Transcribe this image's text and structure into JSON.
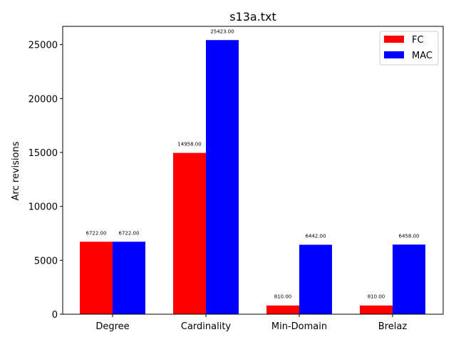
{
  "chart_data": {
    "type": "bar",
    "title": "s13a.txt",
    "xlabel": "",
    "ylabel": "Arc revisions",
    "categories": [
      "Degree",
      "Cardinality",
      "Min-Domain",
      "Brelaz"
    ],
    "series": [
      {
        "name": "FC",
        "color": "#ff0000",
        "values": [
          6722,
          14958,
          810,
          810
        ],
        "labels": [
          "6722.00",
          "14958.00",
          "810.00",
          "810.00"
        ]
      },
      {
        "name": "MAC",
        "color": "#0000ff",
        "values": [
          6722,
          25423,
          6442,
          6458
        ],
        "labels": [
          "6722.00",
          "25423.00",
          "6442.00",
          "6458.00"
        ]
      }
    ],
    "ylim": [
      0,
      26695
    ],
    "yticks": [
      0,
      5000,
      10000,
      15000,
      20000,
      25000
    ],
    "ytick_labels": [
      "0",
      "5000",
      "10000",
      "15000",
      "20000",
      "25000"
    ],
    "grid": false,
    "legend_position": "top-right"
  }
}
